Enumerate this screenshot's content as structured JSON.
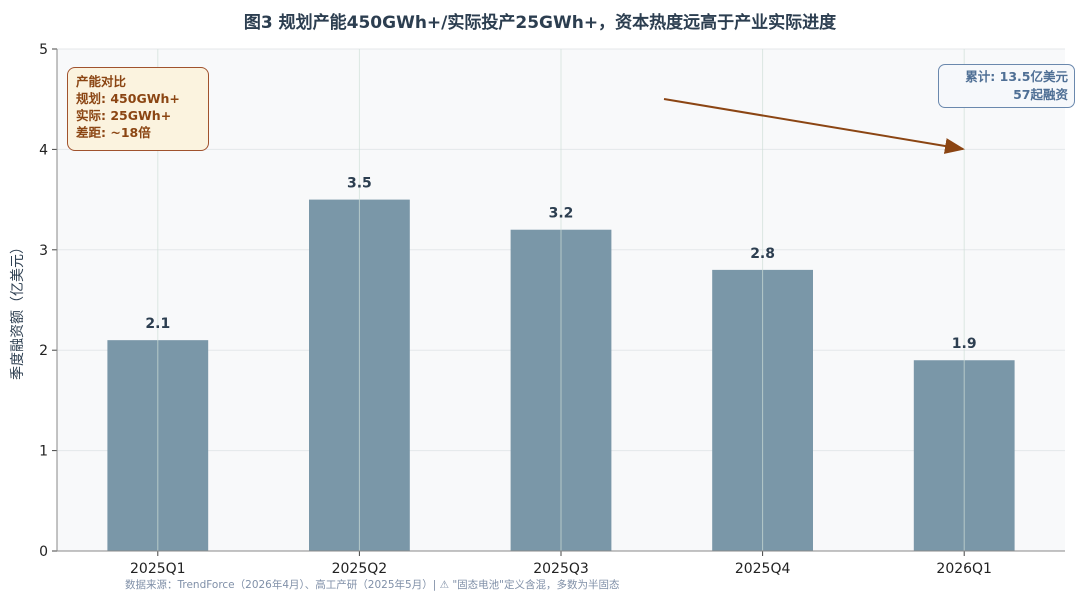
{
  "title": "图3  规划产能450GWh+/实际投产25GWh+，资本热度远高于产业实际进度",
  "chart_data": {
    "type": "bar",
    "title": "图3  规划产能450GWh+/实际投产25GWh+，资本热度远高于产业实际进度",
    "categories": [
      "2025Q1",
      "2025Q2",
      "2025Q3",
      "2025Q4",
      "2026Q1"
    ],
    "values": [
      2.1,
      3.5,
      3.2,
      2.8,
      1.9
    ],
    "value_labels": [
      "2.1",
      "3.5",
      "3.2",
      "2.8",
      "1.9"
    ],
    "xlabel": "",
    "ylabel": "季度融资额（亿美元）",
    "ylim": [
      0,
      5
    ],
    "yticks": [
      0,
      1,
      2,
      3,
      4,
      5
    ],
    "grid": true,
    "bar_color": "#7a97a8",
    "legend": "none"
  },
  "note_box": {
    "title": "产能对比",
    "line1": "规划: 450GWh+",
    "line2": "实际: 25GWh+",
    "line3": "差距: ~18倍"
  },
  "total_box": {
    "line1": "累计: 13.5亿美元",
    "line2": "57起融资"
  },
  "source": "数据来源：TrendForce（2026年4月）、高工产研（2025年5月）| ⚠ \"固态电池\"定义含混，多数为半固态",
  "colors": {
    "bar": "#7a97a8",
    "title": "#2c3e50",
    "arrow": "#8b4513",
    "note_border": "#a0522d",
    "total_border": "#6a88ad"
  }
}
